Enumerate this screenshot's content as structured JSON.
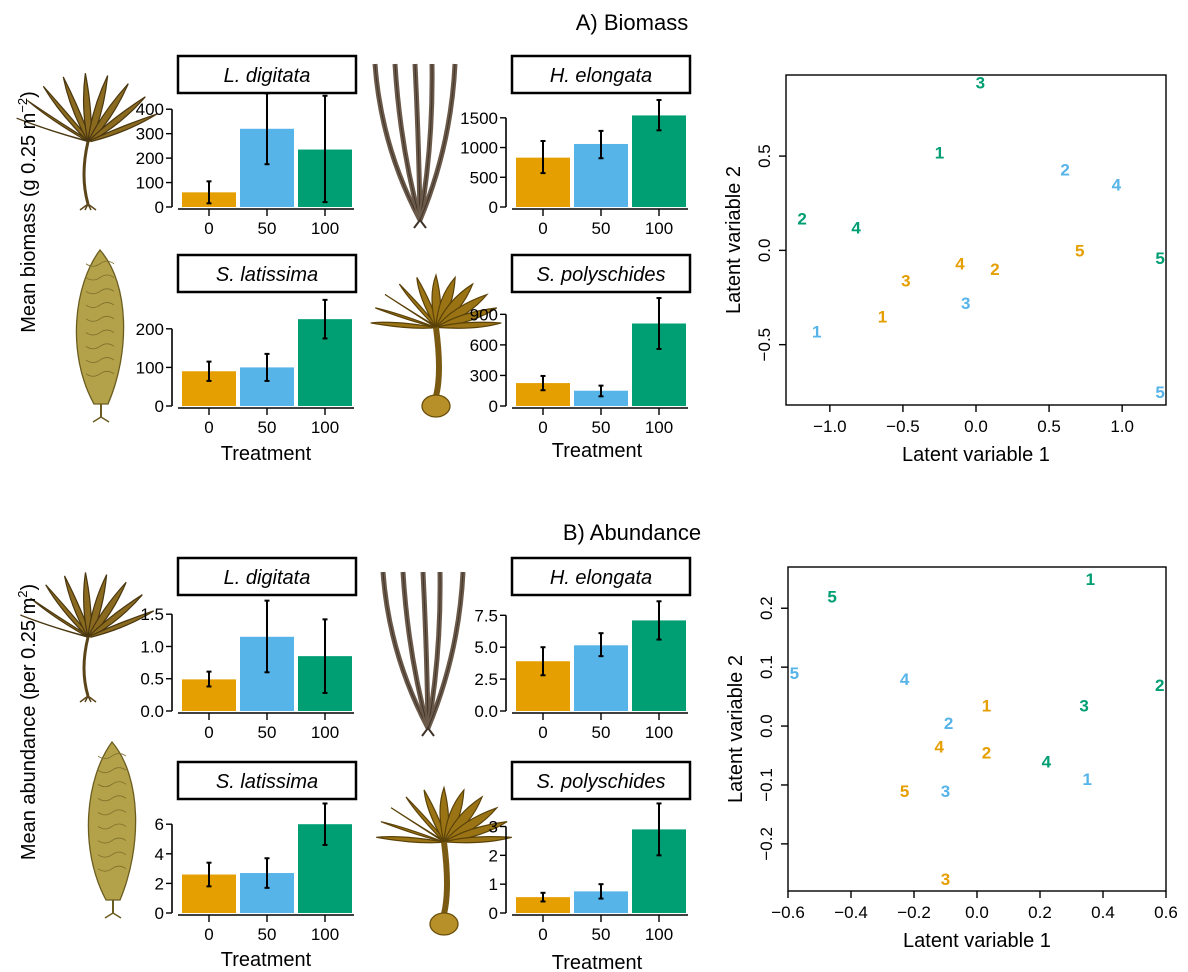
{
  "colors": {
    "treatment_0": "#E69F00",
    "treatment_50": "#56B4E9",
    "treatment_100": "#009E73"
  },
  "icons": [
    "laminaria-digitata-illustration",
    "himanthalia-elongata-illustration",
    "saccharina-latissima-illustration",
    "saccorhiza-polyschides-illustration"
  ],
  "chart_data": [
    {
      "panel": "A",
      "title": "A) Biomass",
      "ylabel_prefix": "Mean biomass (g 0.25 m",
      "ylabel_sup": "−2",
      "ylabel_suffix": ")",
      "xlabel": "Treatment",
      "bars": [
        {
          "type": "bar",
          "species": "L. digitata",
          "categories": [
            "0",
            "50",
            "100"
          ],
          "values": [
            60,
            320,
            235
          ],
          "errors": [
            [
              15,
              105
            ],
            [
              175,
              465
            ],
            [
              20,
              455
            ]
          ],
          "ylim": [
            0,
            450
          ],
          "ticks": [
            0,
            100,
            200,
            300,
            400
          ],
          "tick_labels": [
            "0",
            "100",
            "200",
            "300",
            "400"
          ]
        },
        {
          "type": "bar",
          "species": "H. elongata",
          "categories": [
            "0",
            "50",
            "100"
          ],
          "values": [
            830,
            1060,
            1540
          ],
          "errors": [
            [
              570,
              1110
            ],
            [
              820,
              1280
            ],
            [
              1290,
              1800
            ]
          ],
          "ylim": [
            0,
            1850
          ],
          "ticks": [
            0,
            500,
            1000,
            1500
          ],
          "tick_labels": [
            "0",
            "500",
            "1000",
            "1500"
          ]
        },
        {
          "type": "bar",
          "species": "S. latissima",
          "categories": [
            "0",
            "50",
            "100"
          ],
          "values": [
            90,
            100,
            225
          ],
          "errors": [
            [
              65,
              115
            ],
            [
              65,
              135
            ],
            [
              175,
              275
            ]
          ],
          "ylim": [
            0,
            285
          ],
          "ticks": [
            0,
            100,
            200
          ],
          "tick_labels": [
            "0",
            "100",
            "200"
          ]
        },
        {
          "type": "bar",
          "species": "S. polyschides",
          "categories": [
            "0",
            "50",
            "100"
          ],
          "values": [
            225,
            150,
            810
          ],
          "errors": [
            [
              155,
              295
            ],
            [
              95,
              200
            ],
            [
              560,
              1060
            ]
          ],
          "ylim": [
            0,
            1080
          ],
          "ticks": [
            0,
            300,
            600,
            900
          ],
          "tick_labels": [
            "0",
            "300",
            "600",
            "900"
          ]
        }
      ],
      "ordination": {
        "type": "scatter",
        "xlabel": "Latent variable 1",
        "ylabel": "Latent variable 2",
        "xlim": [
          -1.3,
          1.3
        ],
        "ylim": [
          -0.82,
          0.93
        ],
        "xticks": [
          -1.0,
          -0.5,
          0.0,
          0.5,
          1.0
        ],
        "xtick_labels": [
          "−1.0",
          "−0.5",
          "0.0",
          "0.5",
          "1.0"
        ],
        "yticks": [
          -0.5,
          0.0,
          0.5
        ],
        "ytick_labels": [
          "−0.5",
          "0.0",
          "0.5"
        ],
        "points": [
          {
            "x": 0.03,
            "y": 0.89,
            "label": "3",
            "treatment": "100"
          },
          {
            "x": -0.25,
            "y": 0.52,
            "label": "1",
            "treatment": "100"
          },
          {
            "x": -1.19,
            "y": 0.17,
            "label": "2",
            "treatment": "100"
          },
          {
            "x": -0.82,
            "y": 0.12,
            "label": "4",
            "treatment": "100"
          },
          {
            "x": 1.26,
            "y": -0.04,
            "label": "5",
            "treatment": "100"
          },
          {
            "x": 0.61,
            "y": 0.43,
            "label": "2",
            "treatment": "50"
          },
          {
            "x": 0.96,
            "y": 0.35,
            "label": "4",
            "treatment": "50"
          },
          {
            "x": -1.09,
            "y": -0.43,
            "label": "1",
            "treatment": "50"
          },
          {
            "x": -0.07,
            "y": -0.28,
            "label": "3",
            "treatment": "50"
          },
          {
            "x": 1.26,
            "y": -0.75,
            "label": "5",
            "treatment": "50"
          },
          {
            "x": -0.11,
            "y": -0.07,
            "label": "4",
            "treatment": "0"
          },
          {
            "x": 0.13,
            "y": -0.1,
            "label": "2",
            "treatment": "0"
          },
          {
            "x": 0.71,
            "y": 0.0,
            "label": "5",
            "treatment": "0"
          },
          {
            "x": -0.48,
            "y": -0.16,
            "label": "3",
            "treatment": "0"
          },
          {
            "x": -0.64,
            "y": -0.35,
            "label": "1",
            "treatment": "0"
          }
        ]
      }
    },
    {
      "panel": "B",
      "title": "B) Abundance",
      "ylabel_prefix": "Mean abundance (per 0.25 m",
      "ylabel_sup": "2",
      "ylabel_suffix": ")",
      "xlabel": "Treatment",
      "bars": [
        {
          "type": "bar",
          "species": "L. digitata",
          "categories": [
            "0",
            "50",
            "100"
          ],
          "values": [
            0.49,
            1.15,
            0.85
          ],
          "errors": [
            [
              0.38,
              0.61
            ],
            [
              0.6,
              1.71
            ],
            [
              0.28,
              1.42
            ]
          ],
          "ylim": [
            0,
            1.72
          ],
          "ticks": [
            0,
            0.5,
            1.0,
            1.5
          ],
          "tick_labels": [
            "0.0",
            "0.5",
            "1.0",
            "1.5"
          ]
        },
        {
          "type": "bar",
          "species": "H. elongata",
          "categories": [
            "0",
            "50",
            "100"
          ],
          "values": [
            3.9,
            5.15,
            7.1
          ],
          "errors": [
            [
              2.8,
              5.0
            ],
            [
              4.3,
              6.1
            ],
            [
              5.6,
              8.6
            ]
          ],
          "ylim": [
            0,
            8.7
          ],
          "ticks": [
            0,
            2.5,
            5.0,
            7.5
          ],
          "tick_labels": [
            "0.0",
            "2.5",
            "5.0",
            "7.5"
          ]
        },
        {
          "type": "bar",
          "species": "S. latissima",
          "categories": [
            "0",
            "50",
            "100"
          ],
          "values": [
            2.6,
            2.7,
            6.0
          ],
          "errors": [
            [
              1.8,
              3.4
            ],
            [
              1.7,
              3.7
            ],
            [
              4.6,
              7.4
            ]
          ],
          "ylim": [
            0,
            7.5
          ],
          "ticks": [
            0,
            2,
            4,
            6
          ],
          "tick_labels": [
            "0",
            "2",
            "4",
            "6"
          ]
        },
        {
          "type": "bar",
          "species": "S. polyschides",
          "categories": [
            "0",
            "50",
            "100"
          ],
          "values": [
            0.55,
            0.75,
            2.9
          ],
          "errors": [
            [
              0.4,
              0.7
            ],
            [
              0.5,
              1.0
            ],
            [
              2.0,
              3.8
            ]
          ],
          "ylim": [
            0,
            3.85
          ],
          "ticks": [
            0,
            1,
            2,
            3
          ],
          "tick_labels": [
            "0",
            "1",
            "2",
            "3"
          ]
        }
      ],
      "ordination": {
        "type": "scatter",
        "xlabel": "Latent variable 1",
        "ylabel": "Latent variable 2",
        "xlim": [
          -0.6,
          0.6
        ],
        "ylim": [
          -0.28,
          0.27
        ],
        "xticks": [
          -0.6,
          -0.4,
          -0.2,
          0.0,
          0.2,
          0.4,
          0.6
        ],
        "xtick_labels": [
          "−0.6",
          "−0.4",
          "−0.2",
          "0.0",
          "0.2",
          "0.4",
          "0.6"
        ],
        "yticks": [
          -0.2,
          -0.1,
          0.0,
          0.1,
          0.2
        ],
        "ytick_labels": [
          "−0.2",
          "−0.1",
          "0.0",
          "0.1",
          "0.2"
        ],
        "points": [
          {
            "x": 0.36,
            "y": 0.25,
            "label": "1",
            "treatment": "100"
          },
          {
            "x": -0.46,
            "y": 0.22,
            "label": "5",
            "treatment": "100"
          },
          {
            "x": 0.58,
            "y": 0.07,
            "label": "2",
            "treatment": "100"
          },
          {
            "x": 0.34,
            "y": 0.035,
            "label": "3",
            "treatment": "100"
          },
          {
            "x": 0.22,
            "y": -0.06,
            "label": "4",
            "treatment": "100"
          },
          {
            "x": -0.58,
            "y": 0.09,
            "label": "5",
            "treatment": "50"
          },
          {
            "x": -0.23,
            "y": 0.08,
            "label": "4",
            "treatment": "50"
          },
          {
            "x": -0.09,
            "y": 0.005,
            "label": "2",
            "treatment": "50"
          },
          {
            "x": 0.35,
            "y": -0.09,
            "label": "1",
            "treatment": "50"
          },
          {
            "x": -0.1,
            "y": -0.11,
            "label": "3",
            "treatment": "50"
          },
          {
            "x": 0.03,
            "y": 0.035,
            "label": "1",
            "treatment": "0"
          },
          {
            "x": -0.12,
            "y": -0.035,
            "label": "4",
            "treatment": "0"
          },
          {
            "x": 0.03,
            "y": -0.045,
            "label": "2",
            "treatment": "0"
          },
          {
            "x": -0.23,
            "y": -0.11,
            "label": "5",
            "treatment": "0"
          },
          {
            "x": -0.1,
            "y": -0.26,
            "label": "3",
            "treatment": "0"
          }
        ]
      }
    }
  ]
}
